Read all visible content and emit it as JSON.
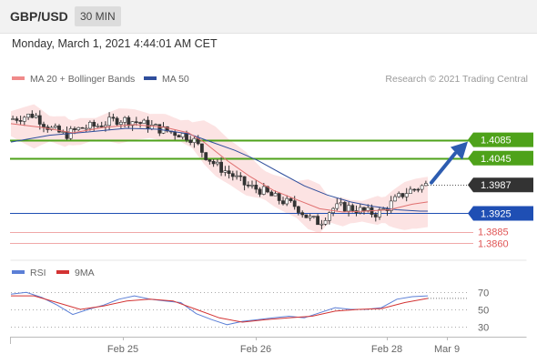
{
  "header": {
    "symbol": "GBP/USD",
    "interval": "30 MIN",
    "timestamp": "Monday, March 1, 2021 4:44:01 AM CET"
  },
  "colors": {
    "resistance": "#4ea21a",
    "pivot": "#1f4fb4",
    "support": "#e05555",
    "last": "#333333",
    "ma20": "#e07070",
    "ma50": "#2f4e9c",
    "bollinger": "#fbd9d9",
    "rsi": "#5b7fd6",
    "rsi_ma": "#d33333",
    "arrow": "#2d5cb0",
    "candle": "#333333"
  },
  "chart_data": [
    {
      "type": "candlestick",
      "legend": [
        {
          "label": "MA 20 + Bollinger Bands",
          "color": "#f08a8a"
        },
        {
          "label": "MA 50",
          "color": "#2f4e9c"
        }
      ],
      "copyright": "Research © 2021 Trading Central",
      "x_labels": [
        "Feb 25",
        "Feb 26",
        "Feb 28",
        "Mar 9"
      ],
      "y_range": [
        1.3835,
        1.4195
      ],
      "price_path": [
        [
          0,
          1.413
        ],
        [
          6,
          1.414
        ],
        [
          10,
          1.411
        ],
        [
          14,
          1.4095
        ],
        [
          18,
          1.411
        ],
        [
          22,
          1.4115
        ],
        [
          28,
          1.413
        ],
        [
          32,
          1.4125
        ],
        [
          36,
          1.4115
        ],
        [
          40,
          1.4105
        ],
        [
          44,
          1.4098
        ],
        [
          47,
          1.4088
        ],
        [
          50,
          1.4055
        ],
        [
          53,
          1.403
        ],
        [
          57,
          1.401
        ],
        [
          61,
          1.3985
        ],
        [
          65,
          1.3975
        ],
        [
          68,
          1.396
        ],
        [
          71,
          1.395
        ],
        [
          74,
          1.394
        ],
        [
          77,
          1.3915
        ],
        [
          80,
          1.3905
        ],
        [
          83,
          1.3935
        ],
        [
          86,
          1.394
        ],
        [
          89,
          1.3935
        ],
        [
          92,
          1.3928
        ],
        [
          95,
          1.3925
        ],
        [
          97,
          1.3935
        ],
        [
          99,
          1.395
        ],
        [
          102,
          1.397
        ],
        [
          105,
          1.398
        ],
        [
          108,
          1.3988
        ]
      ],
      "ma50": [
        [
          0,
          1.408
        ],
        [
          10,
          1.4095
        ],
        [
          20,
          1.4102
        ],
        [
          30,
          1.411
        ],
        [
          38,
          1.4108
        ],
        [
          46,
          1.4098
        ],
        [
          52,
          1.408
        ],
        [
          58,
          1.4062
        ],
        [
          64,
          1.404
        ],
        [
          70,
          1.4012
        ],
        [
          76,
          1.3985
        ],
        [
          82,
          1.3965
        ],
        [
          88,
          1.395
        ],
        [
          94,
          1.394
        ],
        [
          100,
          1.3933
        ],
        [
          106,
          1.393
        ],
        [
          108,
          1.393
        ]
      ],
      "ma20": [
        [
          0,
          1.412
        ],
        [
          8,
          1.4112
        ],
        [
          16,
          1.41
        ],
        [
          24,
          1.4112
        ],
        [
          32,
          1.4118
        ],
        [
          40,
          1.4112
        ],
        [
          46,
          1.41
        ],
        [
          50,
          1.408
        ],
        [
          56,
          1.404
        ],
        [
          62,
          1.4005
        ],
        [
          68,
          1.3975
        ],
        [
          74,
          1.3955
        ],
        [
          80,
          1.3935
        ],
        [
          86,
          1.3928
        ],
        [
          92,
          1.393
        ],
        [
          98,
          1.3933
        ],
        [
          104,
          1.3945
        ],
        [
          108,
          1.395
        ]
      ],
      "bollinger_width": 0.003,
      "levels": [
        {
          "value": 1.4085,
          "label": "1.4085",
          "kind": "resistance"
        },
        {
          "value": 1.4045,
          "label": "1.4045",
          "kind": "resistance"
        },
        {
          "value": 1.3987,
          "label": "1.3987",
          "kind": "last"
        },
        {
          "value": 1.3925,
          "label": "1.3925",
          "kind": "pivot"
        },
        {
          "value": 1.3885,
          "label": "1.3885",
          "kind": "support"
        },
        {
          "value": 1.386,
          "label": "1.3860",
          "kind": "support"
        }
      ]
    },
    {
      "type": "line",
      "legend": [
        {
          "label": "RSI",
          "color": "#5b7fd6"
        },
        {
          "label": "9MA",
          "color": "#d33333"
        }
      ],
      "y_ticks": [
        70,
        50,
        30
      ],
      "y_range": [
        20,
        80
      ],
      "rsi": [
        [
          0,
          68
        ],
        [
          4,
          70
        ],
        [
          8,
          64
        ],
        [
          12,
          55
        ],
        [
          16,
          44
        ],
        [
          20,
          50
        ],
        [
          24,
          55
        ],
        [
          28,
          62
        ],
        [
          32,
          66
        ],
        [
          36,
          62
        ],
        [
          40,
          60
        ],
        [
          44,
          58
        ],
        [
          48,
          45
        ],
        [
          52,
          38
        ],
        [
          56,
          32
        ],
        [
          60,
          36
        ],
        [
          64,
          38
        ],
        [
          68,
          40
        ],
        [
          72,
          42
        ],
        [
          76,
          40
        ],
        [
          80,
          46
        ],
        [
          84,
          52
        ],
        [
          88,
          50
        ],
        [
          92,
          50
        ],
        [
          96,
          52
        ],
        [
          100,
          62
        ],
        [
          104,
          65
        ],
        [
          108,
          66
        ]
      ],
      "rsi_ma": [
        [
          0,
          66
        ],
        [
          6,
          66
        ],
        [
          12,
          58
        ],
        [
          18,
          50
        ],
        [
          24,
          54
        ],
        [
          30,
          60
        ],
        [
          36,
          62
        ],
        [
          42,
          60
        ],
        [
          48,
          50
        ],
        [
          54,
          40
        ],
        [
          60,
          35
        ],
        [
          66,
          38
        ],
        [
          72,
          40
        ],
        [
          78,
          42
        ],
        [
          84,
          48
        ],
        [
          90,
          50
        ],
        [
          96,
          51
        ],
        [
          102,
          58
        ],
        [
          108,
          63
        ]
      ]
    }
  ]
}
